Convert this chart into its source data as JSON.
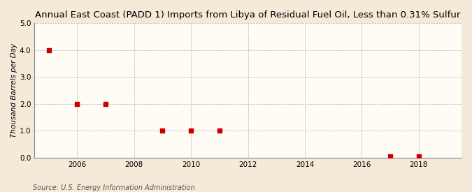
{
  "title": "Annual East Coast (PADD 1) Imports from Libya of Residual Fuel Oil, Less than 0.31% Sulfur",
  "ylabel": "Thousand Barrels per Day",
  "source": "Source: U.S. Energy Information Administration",
  "background_color": "#f5ead8",
  "plot_background_color": "#fefcf5",
  "data_points": [
    {
      "year": 2005,
      "value": 4.0
    },
    {
      "year": 2006,
      "value": 2.0
    },
    {
      "year": 2007,
      "value": 2.0
    },
    {
      "year": 2009,
      "value": 1.0
    },
    {
      "year": 2010,
      "value": 1.0
    },
    {
      "year": 2011,
      "value": 1.0
    },
    {
      "year": 2017,
      "value": 0.05
    },
    {
      "year": 2018,
      "value": 0.05
    }
  ],
  "marker_color": "#cc0000",
  "marker_size": 4,
  "xlim": [
    2004.5,
    2019.5
  ],
  "ylim": [
    0,
    5.0
  ],
  "yticks": [
    0.0,
    1.0,
    2.0,
    3.0,
    4.0,
    5.0
  ],
  "xticks": [
    2006,
    2008,
    2010,
    2012,
    2014,
    2016,
    2018
  ],
  "grid_color": "#aaaaaa",
  "title_fontsize": 9.5,
  "axis_label_fontsize": 7.5,
  "tick_fontsize": 7.5,
  "source_fontsize": 7
}
